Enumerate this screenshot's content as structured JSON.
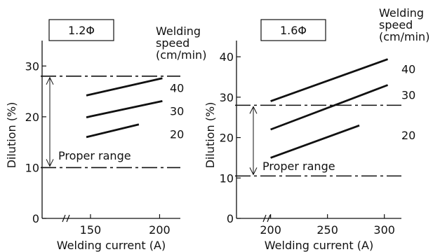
{
  "chart_data": [
    {
      "type": "line",
      "panel_label": "1.2Φ",
      "xlabel": "Welding current (A)",
      "ylabel": "Dilution (%)",
      "xlim": [
        115,
        215
      ],
      "ylim": [
        0,
        35
      ],
      "x_ticks": [
        150,
        200
      ],
      "y_ticks": [
        0,
        10,
        20,
        30
      ],
      "legend_title": [
        "Welding",
        "speed",
        "(cm/min)"
      ],
      "series": [
        {
          "name": "40",
          "x": [
            147,
            202
          ],
          "y": [
            24.2,
            27.6
          ]
        },
        {
          "name": "30",
          "x": [
            147,
            202
          ],
          "y": [
            19.9,
            23.1
          ]
        },
        {
          "name": "20",
          "x": [
            147,
            185
          ],
          "y": [
            16.0,
            18.5
          ]
        }
      ],
      "proper_range": {
        "label": "Proper range",
        "lower": 10,
        "upper": 28
      }
    },
    {
      "type": "line",
      "panel_label": "1.6Φ",
      "xlabel": "Welding current (A)",
      "ylabel": "Dilution (%)",
      "xlim": [
        170,
        315
      ],
      "ylim": [
        0,
        44
      ],
      "x_ticks": [
        200,
        250,
        300
      ],
      "y_ticks": [
        0,
        10,
        20,
        30,
        40
      ],
      "legend_title": [
        "Welding",
        "speed",
        "(cm/min)"
      ],
      "series": [
        {
          "name": "40",
          "x": [
            200,
            303
          ],
          "y": [
            29.0,
            39.4
          ]
        },
        {
          "name": "30",
          "x": [
            200,
            303
          ],
          "y": [
            22.0,
            33.0
          ]
        },
        {
          "name": "20",
          "x": [
            200,
            278
          ],
          "y": [
            15.0,
            23.0
          ]
        }
      ],
      "proper_range": {
        "label": "Proper range",
        "lower": 10.5,
        "upper": 28
      }
    }
  ]
}
